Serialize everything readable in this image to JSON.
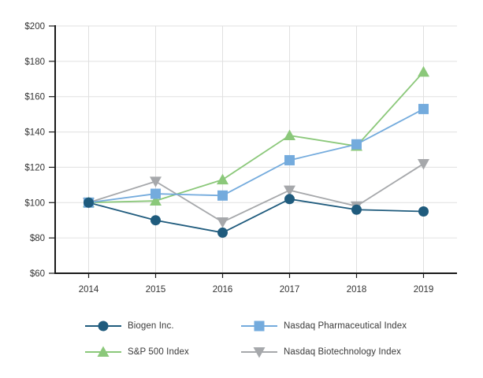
{
  "background_color": "#ffffff",
  "chart_data": {
    "type": "line",
    "title": "",
    "xlabel": "",
    "ylabel": "",
    "x_labels": [
      "2014",
      "2015",
      "2016",
      "2017",
      "2018",
      "2019"
    ],
    "ylim": [
      60,
      200
    ],
    "y_ticks": [
      {
        "value": 200,
        "label": "$200"
      },
      {
        "value": 180,
        "label": "$180"
      },
      {
        "value": 160,
        "label": "$160"
      },
      {
        "value": 140,
        "label": "$140"
      },
      {
        "value": 120,
        "label": "$120"
      },
      {
        "value": 100,
        "label": "$100"
      },
      {
        "value": 80,
        "label": "$80"
      },
      {
        "value": 60,
        "label": "$60"
      }
    ],
    "grid": true,
    "legend_position": "bottom",
    "series": [
      {
        "name": "Biogen Inc.",
        "marker": "circle",
        "color": "#1F5B7D",
        "values": [
          100,
          90,
          83,
          102,
          96,
          95
        ]
      },
      {
        "name": "S&P 500 Index",
        "marker": "triangle-up",
        "color": "#8BC87A",
        "values": [
          100,
          101,
          113,
          138,
          132,
          174
        ]
      },
      {
        "name": "Nasdaq Pharmaceutical Index",
        "marker": "square",
        "color": "#74ABDD",
        "values": [
          100,
          105,
          104,
          124,
          133,
          153
        ]
      },
      {
        "name": "Nasdaq Biotechnology Index",
        "marker": "triangle-down",
        "color": "#A6A8AB",
        "values": [
          100,
          112,
          89,
          107,
          98,
          122
        ]
      }
    ],
    "axis_color": "#1a1a1a",
    "grid_color": "#e0e0e0",
    "tick_label_color": "#333333"
  }
}
